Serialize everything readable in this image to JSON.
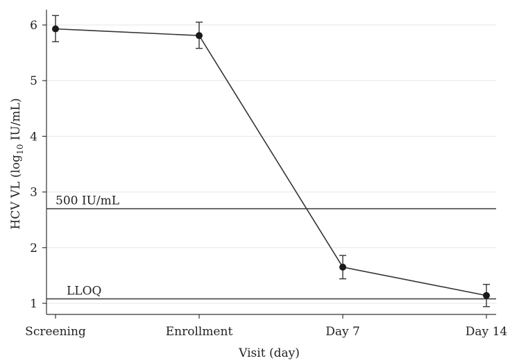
{
  "chart_data": {
    "type": "line",
    "xlabel": "Visit (day)",
    "ylabel_main": "HCV VL (log",
    "ylabel_sub": "10",
    "ylabel_tail": " IU/mL)",
    "categories": [
      "Screening",
      "Enrollment",
      "Day 7",
      "Day 14"
    ],
    "x_positions_days": [
      0,
      1,
      2,
      3
    ],
    "series": [
      {
        "values": [
          5.93,
          5.81,
          1.65,
          1.14
        ],
        "err_low": [
          5.7,
          5.58,
          1.44,
          0.94
        ],
        "err_high": [
          6.17,
          6.05,
          1.86,
          1.34
        ]
      }
    ],
    "yticks": [
      1,
      2,
      3,
      4,
      5,
      6
    ],
    "ylim": [
      0.8,
      6.3
    ],
    "grid": "horizontal",
    "reference_lines": [
      {
        "label": "500 IU/mL",
        "value": 2.7
      },
      {
        "label": "LLOQ",
        "value": 1.08
      }
    ]
  }
}
